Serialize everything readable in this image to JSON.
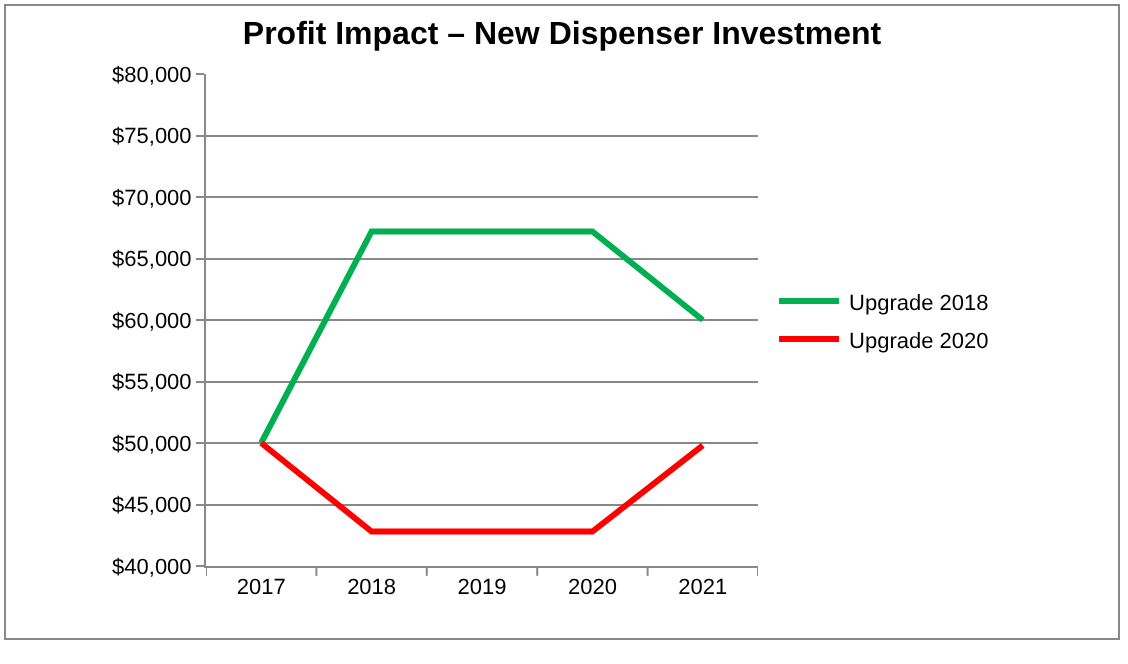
{
  "chart_data": {
    "type": "line",
    "title": "Profit Impact – New Dispenser Investment",
    "categories": [
      "2017",
      "2018",
      "2019",
      "2020",
      "2021"
    ],
    "series": [
      {
        "name": "Upgrade 2018",
        "color": "#00b050",
        "values": [
          50000,
          67200,
          67200,
          67200,
          60000
        ]
      },
      {
        "name": "Upgrade 2020",
        "color": "#ff0000",
        "values": [
          50000,
          42800,
          42800,
          42800,
          49800
        ]
      }
    ],
    "ylim": [
      40000,
      80000
    ],
    "yticks": [
      {
        "value": 40000,
        "label": "$40,000"
      },
      {
        "value": 45000,
        "label": "$45,000"
      },
      {
        "value": 50000,
        "label": "$50,000"
      },
      {
        "value": 55000,
        "label": "$55,000"
      },
      {
        "value": 60000,
        "label": "$60,000"
      },
      {
        "value": 65000,
        "label": "$65,000"
      },
      {
        "value": 70000,
        "label": "$70,000"
      },
      {
        "value": 75000,
        "label": "$75,000"
      },
      {
        "value": 80000,
        "label": "$80,000"
      }
    ],
    "grid": "y",
    "legend": "right",
    "marker": "none",
    "line_style": "solid"
  }
}
